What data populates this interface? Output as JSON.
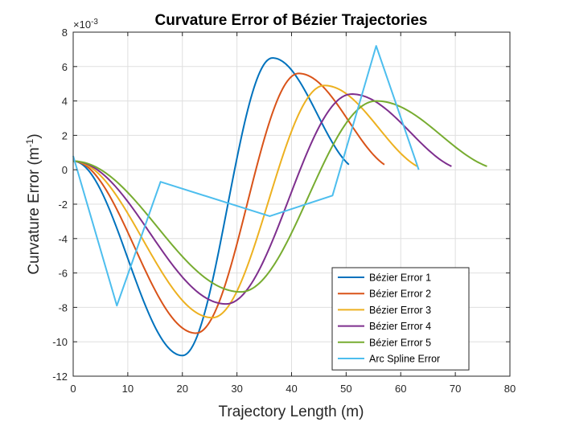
{
  "chart_data": {
    "type": "line",
    "title": "Curvature Error of Bézier Trajectories",
    "xlabel": "Trajectory Length (m)",
    "ylabel_main": "Curvature Error (m",
    "ylabel_sup": "-1",
    "ylabel_close": ")",
    "exponent_base": "×10",
    "exponent_power": "-3",
    "xlim": [
      0,
      80
    ],
    "ylim": [
      -12,
      8
    ],
    "xticks": [
      0,
      10,
      20,
      30,
      40,
      50,
      60,
      70,
      80
    ],
    "yticks": [
      -12,
      -10,
      -8,
      -6,
      -4,
      -2,
      0,
      2,
      4,
      6,
      8
    ],
    "grid": true,
    "legend_position": "lower-right",
    "series": [
      {
        "name": "Bézier Error 1",
        "color": "#0072BD",
        "length": 50.5,
        "start": 0.5,
        "end": 0.3,
        "min": -10.8,
        "max": 6.5,
        "xmin": 20.0,
        "xmax": 36.5
      },
      {
        "name": "Bézier Error 2",
        "color": "#D95319",
        "length": 57.0,
        "start": 0.5,
        "end": 0.3,
        "min": -9.5,
        "max": 5.6,
        "xmin": 22.5,
        "xmax": 41.3
      },
      {
        "name": "Bézier Error 3",
        "color": "#EDB120",
        "length": 63.0,
        "start": 0.5,
        "end": 0.2,
        "min": -8.6,
        "max": 4.9,
        "xmin": 25.5,
        "xmax": 46.0
      },
      {
        "name": "Bézier Error 4",
        "color": "#7E2F8E",
        "length": 69.3,
        "start": 0.5,
        "end": 0.2,
        "min": -7.8,
        "max": 4.4,
        "xmin": 28.0,
        "xmax": 51.0
      },
      {
        "name": "Bézier Error 5",
        "color": "#77AC30",
        "length": 75.8,
        "start": 0.5,
        "end": 0.2,
        "min": -7.1,
        "max": 4.0,
        "xmin": 30.7,
        "xmax": 55.5
      }
    ],
    "arc_spline": {
      "name": "Arc Spline Error",
      "color": "#4DBEEE",
      "x": [
        0,
        8,
        16,
        36,
        47.5,
        55.5,
        63.3
      ],
      "y": [
        0.8,
        -7.9,
        -0.7,
        -2.7,
        -1.5,
        7.2,
        0.0
      ]
    }
  }
}
